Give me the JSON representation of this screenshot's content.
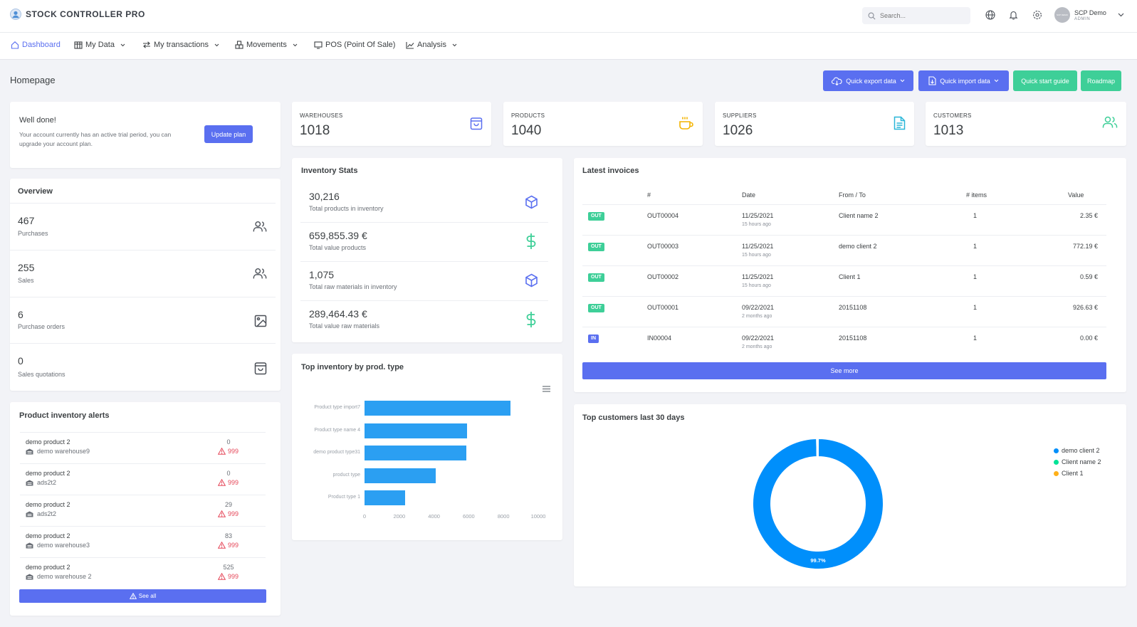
{
  "brand": {
    "title": "STOCK CONTROLLER PRO"
  },
  "search": {
    "placeholder": "Search..."
  },
  "user": {
    "name": "SCP Demo",
    "role": "ADMIN",
    "avatar_text": "SCP DEMO"
  },
  "nav": {
    "dashboard": "Dashboard",
    "my_data": "My Data",
    "my_transactions": "My transactions",
    "movements": "Movements",
    "pos": "POS (Point Of Sale)",
    "analysis": "Analysis"
  },
  "page": {
    "title": "Homepage"
  },
  "actions": {
    "quick_export": "Quick export data",
    "quick_import": "Quick import data",
    "quick_start": "Quick start guide",
    "roadmap": "Roadmap"
  },
  "plan": {
    "title": "Well done!",
    "message": "Your account currently has an active trial period, you can upgrade your account plan.",
    "button": "Update plan"
  },
  "stats": {
    "warehouses": {
      "label": "WAREHOUSES",
      "value": "1018"
    },
    "products": {
      "label": "PRODUCTS",
      "value": "1040"
    },
    "suppliers": {
      "label": "SUPPLIERS",
      "value": "1026"
    },
    "customers": {
      "label": "CUSTOMERS",
      "value": "1013"
    }
  },
  "overview": {
    "title": "Overview",
    "items": [
      {
        "value": "467",
        "label": "Purchases"
      },
      {
        "value": "255",
        "label": "Sales"
      },
      {
        "value": "6",
        "label": "Purchase orders"
      },
      {
        "value": "0",
        "label": "Sales quotations"
      }
    ]
  },
  "inventory": {
    "title": "Inventory Stats",
    "items": [
      {
        "value": "30,216",
        "label": "Total products in inventory"
      },
      {
        "value": "659,855.39 €",
        "label": "Total value products"
      },
      {
        "value": "1,075",
        "label": "Total raw materials in inventory"
      },
      {
        "value": "289,464.43 €",
        "label": "Total value raw materials"
      }
    ]
  },
  "alerts": {
    "title": "Product inventory alerts",
    "see_all": "See all",
    "items": [
      {
        "product": "demo product 2",
        "warehouse": "demo warehouse9",
        "qty": "0",
        "threshold": "999"
      },
      {
        "product": "demo product 2",
        "warehouse": "ads2t2",
        "qty": "0",
        "threshold": "999"
      },
      {
        "product": "demo product 2",
        "warehouse": "ads2t2",
        "qty": "29",
        "threshold": "999"
      },
      {
        "product": "demo product 2",
        "warehouse": "demo warehouse3",
        "qty": "83",
        "threshold": "999"
      },
      {
        "product": "demo product 2",
        "warehouse": "demo warehouse 2",
        "qty": "525",
        "threshold": "999"
      }
    ]
  },
  "invoices": {
    "title": "Latest invoices",
    "see_more": "See more",
    "headers": {
      "num": "#",
      "date": "Date",
      "from_to": "From / To",
      "items": "# items",
      "value": "Value"
    },
    "rows": [
      {
        "type": "OUT",
        "num": "OUT00004",
        "date": "11/25/2021",
        "ago": "15 hours ago",
        "party": "Client name 2",
        "items": "1",
        "value": "2.35 €",
        "color": "#3ecf98"
      },
      {
        "type": "OUT",
        "num": "OUT00003",
        "date": "11/25/2021",
        "ago": "15 hours ago",
        "party": "demo client 2",
        "items": "1",
        "value": "772.19 €",
        "color": "#3ecf98"
      },
      {
        "type": "OUT",
        "num": "OUT00002",
        "date": "11/25/2021",
        "ago": "15 hours ago",
        "party": "Client 1",
        "items": "1",
        "value": "0.59 €",
        "color": "#3ecf98"
      },
      {
        "type": "OUT",
        "num": "OUT00001",
        "date": "09/22/2021",
        "ago": "2 months ago",
        "party": "20151108",
        "items": "1",
        "value": "926.63 €",
        "color": "#3ecf98"
      },
      {
        "type": "IN",
        "num": "IN00004",
        "date": "09/22/2021",
        "ago": "2 months ago",
        "party": "20151108",
        "items": "1",
        "value": "0.00 €",
        "color": "#5a6ff0"
      }
    ]
  },
  "top_inventory": {
    "title": "Top inventory by prod. type"
  },
  "top_customers": {
    "title": "Top customers last 30 days"
  },
  "chart_data": [
    {
      "type": "bar",
      "orientation": "horizontal",
      "title": "Top inventory by prod. type",
      "categories": [
        "Product type import7",
        "Product type name 4",
        "demo product type31",
        "product type",
        "Product type 1"
      ],
      "values": [
        8400,
        5900,
        5850,
        4100,
        2350
      ],
      "xlim": [
        0,
        10000
      ],
      "xticks": [
        "0",
        "2000",
        "4000",
        "6000",
        "8000",
        "10000"
      ],
      "color": "#2b9ff2"
    },
    {
      "type": "pie",
      "variant": "donut",
      "title": "Top customers last 30 days",
      "labels": [
        "demo client 2",
        "Client name 2",
        "Client 1"
      ],
      "values": [
        99.7,
        0.2,
        0.1
      ],
      "colors": [
        "#008ffb",
        "#00e396",
        "#feb019"
      ],
      "data_label": "99.7%",
      "legend": "right"
    }
  ]
}
